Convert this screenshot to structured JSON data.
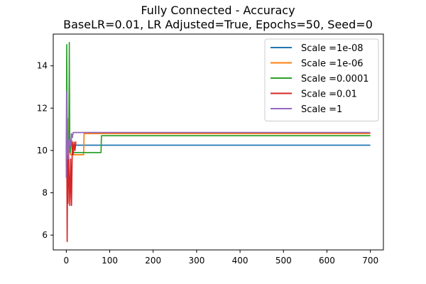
{
  "chart_data": {
    "type": "line",
    "title": "Fully Connected - Accuracy",
    "subtitle": "BaseLR=0.01, LR Adjusted=True, Epochs=50, Seed=0",
    "xlabel": "",
    "ylabel": "",
    "xlim": [
      -30,
      730
    ],
    "ylim": [
      5.3,
      15.5
    ],
    "xticks": [
      0,
      100,
      200,
      300,
      400,
      500,
      600,
      700
    ],
    "yticks": [
      6,
      8,
      10,
      12,
      14
    ],
    "grid": false,
    "legend_position": "top-right",
    "series": [
      {
        "name": "Scale =1e-08",
        "color": "#1f77b4",
        "x": [
          0,
          1,
          2,
          3,
          4,
          5,
          700
        ],
        "y": [
          10.0,
          10.6,
          9.2,
          10.3,
          10.1,
          10.25,
          10.25
        ]
      },
      {
        "name": "Scale =1e-06",
        "color": "#ff7f0e",
        "x": [
          0,
          1,
          2,
          3,
          4,
          5,
          6,
          8,
          10,
          14,
          15,
          40,
          41,
          42,
          700
        ],
        "y": [
          9.0,
          13.4,
          10.6,
          11.5,
          8.9,
          10.0,
          9.9,
          10.0,
          9.8,
          9.8,
          9.8,
          9.8,
          10.8,
          10.8,
          10.8
        ]
      },
      {
        "name": "Scale =0.0001",
        "color": "#2ca02c",
        "x": [
          0,
          1,
          2,
          3,
          4,
          5,
          6,
          7,
          8,
          9,
          10,
          12,
          14,
          15,
          80,
          81,
          82,
          700
        ],
        "y": [
          9.2,
          15.0,
          10.5,
          9.8,
          10.3,
          10.0,
          10.6,
          15.1,
          10.2,
          9.9,
          10.3,
          10.5,
          9.9,
          9.9,
          9.9,
          10.7,
          10.7,
          10.7
        ]
      },
      {
        "name": "Scale =0.01",
        "color": "#d62728",
        "x": [
          0,
          1,
          2,
          3,
          4,
          5,
          6,
          8,
          10,
          12,
          14,
          16,
          18,
          20,
          22,
          23
        ],
        "y": [
          9.7,
          11.4,
          5.7,
          9.6,
          7.5,
          10.3,
          9.2,
          7.4,
          9.6,
          7.4,
          10.4,
          9.8,
          10.4,
          10.0,
          10.4,
          10.4
        ]
      },
      {
        "name": "Scale =1",
        "color": "#9467bd",
        "x": [
          0,
          1,
          2,
          3,
          4,
          5,
          6,
          8,
          10,
          12,
          14,
          16,
          18,
          20,
          700
        ],
        "y": [
          8.7,
          12.8,
          9.8,
          10.9,
          9.6,
          10.5,
          10.2,
          10.5,
          10.2,
          10.8,
          10.6,
          10.85,
          10.85,
          10.85,
          10.85
        ]
      }
    ]
  }
}
